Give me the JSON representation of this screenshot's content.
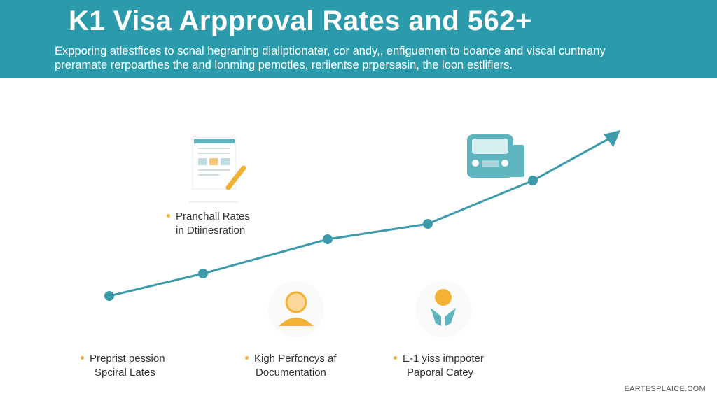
{
  "header": {
    "title": "K1 Visa Arpproval Rates and 562+",
    "subtitle_line1": "Expporing atlestfices to scnal hegraning dialiptionater, cor andy,, enfiguemen to boance and viscal cuntnany",
    "subtitle_line2": "preramate rerpoarthes the and lonming pemotles, reriientse prpersasin, the loon estlifiers."
  },
  "colors": {
    "header": "#2b9aaa",
    "line": "#3c9aaa",
    "accent": "#f0b43c"
  },
  "labels": [
    {
      "line1": "Pranchall Rates",
      "line2": "in Dtiinesration",
      "icon": "document-pencil-icon"
    },
    {
      "line1": "Preprist pession",
      "line2": "Spciral Lates",
      "icon": "none"
    },
    {
      "line1": "Kigh Perfoncys af",
      "line2": "Documentation",
      "icon": "person-icon"
    },
    {
      "line1": "E-1 yiss imppoter",
      "line2": "Paporal Catey",
      "icon": "hands-sun-icon"
    }
  ],
  "top_right_icon": "car-icon",
  "footer": "EARTESPLAICE.COM"
}
